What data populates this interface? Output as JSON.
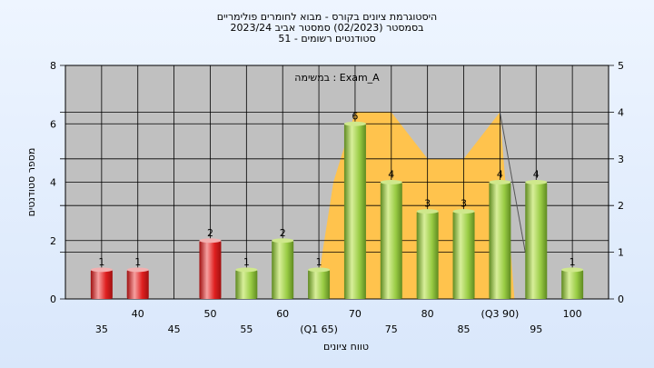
{
  "chart_data": {
    "type": "bar",
    "title_lines": [
      "היסטוגרמת ציונים בקורס - מבוא לחומרים פולימריים",
      "בסמסטר  (02/2023)  סמסטר אביב 2023/24",
      "51 - סטודנטים רשומים"
    ],
    "annotation": "במשימה : Exam_A",
    "xlabel": "טווח ציונים",
    "ylabel": "מספר סטודנטים",
    "ylim": [
      0,
      8
    ],
    "y_ticks": [
      0,
      2,
      4,
      6,
      8
    ],
    "y2lim": [
      0,
      5
    ],
    "y2_ticks": [
      0,
      1,
      2,
      3,
      4,
      5
    ],
    "x_tick_labels": [
      {
        "x": 35,
        "label": "35",
        "row": 2
      },
      {
        "x": 40,
        "label": "40",
        "row": 1
      },
      {
        "x": 45,
        "label": "45",
        "row": 2
      },
      {
        "x": 50,
        "label": "50",
        "row": 1
      },
      {
        "x": 55,
        "label": "55",
        "row": 2
      },
      {
        "x": 60,
        "label": "60",
        "row": 1
      },
      {
        "x": 65,
        "label": "(Q1 65)",
        "row": 2
      },
      {
        "x": 70,
        "label": "70",
        "row": 1
      },
      {
        "x": 75,
        "label": "75",
        "row": 2
      },
      {
        "x": 80,
        "label": "80",
        "row": 1
      },
      {
        "x": 85,
        "label": "85",
        "row": 2
      },
      {
        "x": 90,
        "label": "(Q3 90)",
        "row": 1
      },
      {
        "x": 95,
        "label": "95",
        "row": 2
      },
      {
        "x": 100,
        "label": "100",
        "row": 1
      }
    ],
    "bars": [
      {
        "x": 35,
        "value": 1,
        "color": "red"
      },
      {
        "x": 40,
        "value": 1,
        "color": "red"
      },
      {
        "x": 50,
        "value": 2,
        "color": "red"
      },
      {
        "x": 55,
        "value": 1,
        "color": "green"
      },
      {
        "x": 60,
        "value": 2,
        "color": "green"
      },
      {
        "x": 65,
        "value": 1,
        "color": "green"
      },
      {
        "x": 70,
        "value": 6,
        "color": "green"
      },
      {
        "x": 75,
        "value": 4,
        "color": "green"
      },
      {
        "x": 80,
        "value": 3,
        "color": "green"
      },
      {
        "x": 85,
        "value": 3,
        "color": "green"
      },
      {
        "x": 90,
        "value": 4,
        "color": "green"
      },
      {
        "x": 95,
        "value": 4,
        "color": "green"
      },
      {
        "x": 100,
        "value": 1,
        "color": "green"
      }
    ],
    "area": {
      "axis": "y2",
      "points": [
        [
          64.5,
          0
        ],
        [
          67,
          2.5
        ],
        [
          70,
          4
        ],
        [
          75,
          4
        ],
        [
          80,
          3
        ],
        [
          85,
          3
        ],
        [
          90,
          4
        ],
        [
          92,
          0
        ]
      ]
    },
    "right_ref_line_y2": [
      4,
      1
    ],
    "colors": {
      "plot_bg": "#c0c0c0",
      "area": "#ffc34d",
      "red": "#e8282a",
      "green": "#99cc44",
      "grid": "#000000"
    },
    "grid": true
  }
}
